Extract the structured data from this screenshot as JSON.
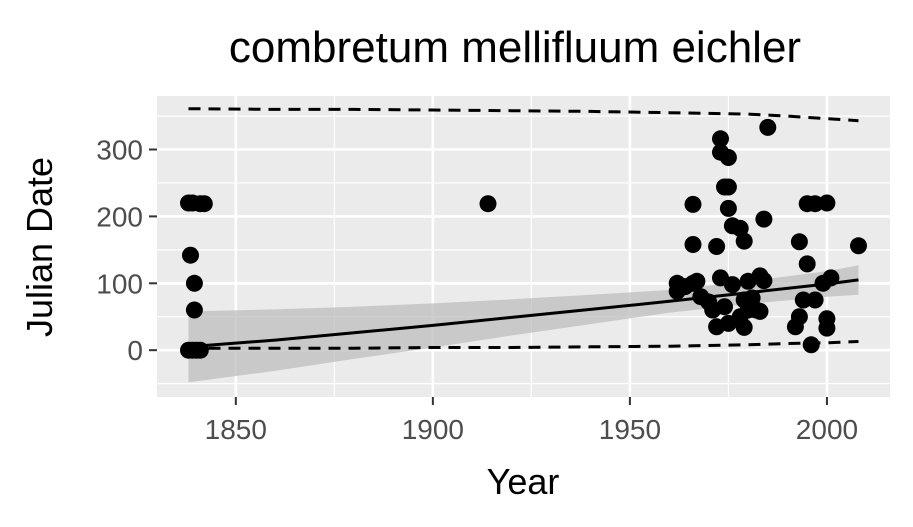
{
  "chart_data": {
    "type": "scatter",
    "title": "combretum mellifluum eichler",
    "xlabel": "Year",
    "ylabel": "Julian Date",
    "xlim": [
      1830,
      2016
    ],
    "ylim": [
      -70,
      380
    ],
    "x_ticks": [
      1850,
      1900,
      1950,
      2000
    ],
    "y_ticks": [
      0,
      100,
      200,
      300
    ],
    "x_tick_labels": [
      "1850",
      "1900",
      "1950",
      "2000"
    ],
    "y_tick_labels": [
      "0",
      "100",
      "200",
      "300"
    ],
    "grid": true,
    "legend": "none",
    "colors": {
      "panel": "#ebebeb",
      "grid": "#ffffff",
      "points": "#000000",
      "ribbon": "#bebebe",
      "fit_line": "#000000",
      "tick_label": "#4d4d4d"
    },
    "points": [
      {
        "x": 1838,
        "y": 0
      },
      {
        "x": 1839,
        "y": 0
      },
      {
        "x": 1840,
        "y": 0
      },
      {
        "x": 1841,
        "y": 0
      },
      {
        "x": 1838,
        "y": 220
      },
      {
        "x": 1839,
        "y": 220
      },
      {
        "x": 1841,
        "y": 219
      },
      {
        "x": 1842,
        "y": 219
      },
      {
        "x": 1838.5,
        "y": 142
      },
      {
        "x": 1839.5,
        "y": 100
      },
      {
        "x": 1839.5,
        "y": 60
      },
      {
        "x": 1914,
        "y": 219
      },
      {
        "x": 1962,
        "y": 100
      },
      {
        "x": 1962,
        "y": 88
      },
      {
        "x": 1964,
        "y": 95
      },
      {
        "x": 1966,
        "y": 218
      },
      {
        "x": 1966,
        "y": 158
      },
      {
        "x": 1966,
        "y": 100
      },
      {
        "x": 1967,
        "y": 103
      },
      {
        "x": 1968,
        "y": 80
      },
      {
        "x": 1970,
        "y": 72
      },
      {
        "x": 1971,
        "y": 60
      },
      {
        "x": 1972,
        "y": 155
      },
      {
        "x": 1972,
        "y": 35
      },
      {
        "x": 1973,
        "y": 316
      },
      {
        "x": 1973,
        "y": 296
      },
      {
        "x": 1973,
        "y": 108
      },
      {
        "x": 1974,
        "y": 244
      },
      {
        "x": 1974,
        "y": 65
      },
      {
        "x": 1975,
        "y": 288
      },
      {
        "x": 1975,
        "y": 244
      },
      {
        "x": 1975,
        "y": 212
      },
      {
        "x": 1975,
        "y": 40
      },
      {
        "x": 1976,
        "y": 186
      },
      {
        "x": 1976,
        "y": 98
      },
      {
        "x": 1978,
        "y": 182
      },
      {
        "x": 1978,
        "y": 50
      },
      {
        "x": 1979,
        "y": 163
      },
      {
        "x": 1979,
        "y": 75
      },
      {
        "x": 1979,
        "y": 34
      },
      {
        "x": 1980,
        "y": 103
      },
      {
        "x": 1980,
        "y": 60
      },
      {
        "x": 1981,
        "y": 78
      },
      {
        "x": 1982,
        "y": 60
      },
      {
        "x": 1983,
        "y": 111
      },
      {
        "x": 1983,
        "y": 58
      },
      {
        "x": 1984,
        "y": 196
      },
      {
        "x": 1984,
        "y": 104
      },
      {
        "x": 1985,
        "y": 333
      },
      {
        "x": 1992,
        "y": 35
      },
      {
        "x": 1993,
        "y": 162
      },
      {
        "x": 1993,
        "y": 50
      },
      {
        "x": 1994,
        "y": 75
      },
      {
        "x": 1995,
        "y": 219
      },
      {
        "x": 1995,
        "y": 129
      },
      {
        "x": 1996,
        "y": 8
      },
      {
        "x": 1997,
        "y": 219
      },
      {
        "x": 1997,
        "y": 75
      },
      {
        "x": 1999,
        "y": 100
      },
      {
        "x": 2000,
        "y": 220
      },
      {
        "x": 2000,
        "y": 47
      },
      {
        "x": 2000,
        "y": 33
      },
      {
        "x": 2001,
        "y": 108
      },
      {
        "x": 2008,
        "y": 156
      }
    ],
    "fit_line": {
      "x": [
        1838,
        1860,
        1880,
        1900,
        1920,
        1940,
        1960,
        1980,
        2000,
        2008
      ],
      "y": [
        5,
        15,
        26,
        37,
        49,
        61,
        73,
        86,
        99,
        105
      ]
    },
    "ribbon": {
      "x": [
        1838,
        1860,
        1880,
        1900,
        1920,
        1940,
        1960,
        1980,
        2000,
        2008
      ],
      "upper": [
        58,
        61,
        65,
        70,
        76,
        83,
        90,
        103,
        118,
        127
      ],
      "lower": [
        -48,
        -31,
        -13,
        4,
        22,
        39,
        56,
        69,
        80,
        83
      ]
    },
    "upper_quantile_line": {
      "x": [
        1838,
        1860,
        1880,
        1900,
        1920,
        1940,
        1960,
        1970,
        1980,
        1990,
        2000,
        2008
      ],
      "y": [
        361,
        360,
        360,
        359,
        358,
        357,
        355,
        354,
        353,
        350,
        346,
        343
      ]
    },
    "lower_quantile_line": {
      "x": [
        1838,
        1860,
        1880,
        1900,
        1920,
        1940,
        1960,
        1970,
        1980,
        1990,
        2000,
        2008
      ],
      "y": [
        3,
        3,
        3,
        4,
        4,
        5,
        6,
        7,
        8,
        10,
        11,
        13
      ]
    }
  }
}
